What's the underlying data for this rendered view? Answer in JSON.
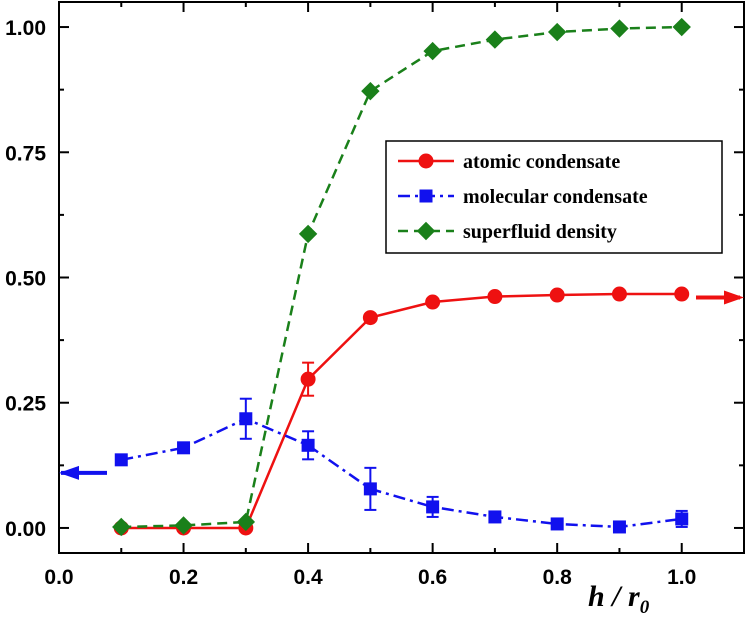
{
  "chart_data": {
    "type": "line",
    "xlabel": "h / r",
    "xlabel_subscript": "0",
    "xlim": [
      0.0,
      1.1
    ],
    "ylim": [
      -0.05,
      1.05
    ],
    "x_ticks": [
      "0.0",
      "0.2",
      "0.4",
      "0.6",
      "0.8",
      "1.0"
    ],
    "y_ticks": [
      "0.00",
      "0.25",
      "0.50",
      "0.75",
      "1.00"
    ],
    "legend_position": "upper-right",
    "series": [
      {
        "name": "atomic condensate",
        "color": "#ee1111",
        "marker": "circle",
        "line_style": "solid",
        "x": [
          0.1,
          0.2,
          0.3,
          0.4,
          0.5,
          0.6,
          0.7,
          0.8,
          0.9,
          1.0
        ],
        "y": [
          0.0,
          0.0,
          0.0,
          0.297,
          0.42,
          0.451,
          0.462,
          0.465,
          0.467,
          0.467
        ],
        "err": [
          0,
          0,
          0,
          0.033,
          0,
          0,
          0,
          0,
          0,
          0
        ]
      },
      {
        "name": "molecular condensate",
        "color": "#1111ee",
        "marker": "square",
        "line_style": "dash-dot",
        "x": [
          0.1,
          0.2,
          0.3,
          0.4,
          0.5,
          0.6,
          0.7,
          0.8,
          0.9,
          1.0
        ],
        "y": [
          0.136,
          0.16,
          0.218,
          0.165,
          0.078,
          0.042,
          0.022,
          0.008,
          0.002,
          0.018
        ],
        "err": [
          0,
          0,
          0.04,
          0.028,
          0.042,
          0.02,
          0,
          0,
          0,
          0.016
        ]
      },
      {
        "name": "superfluid density",
        "color": "#1a801a",
        "marker": "diamond",
        "line_style": "dashed",
        "x": [
          0.1,
          0.2,
          0.3,
          0.4,
          0.5,
          0.6,
          0.7,
          0.8,
          0.9,
          1.0
        ],
        "y": [
          0.002,
          0.005,
          0.012,
          0.587,
          0.872,
          0.952,
          0.975,
          0.99,
          0.997,
          1.0
        ],
        "err": [
          0,
          0,
          0,
          0,
          0,
          0,
          0,
          0,
          0,
          0
        ]
      }
    ],
    "axis_arrows": [
      {
        "side": "left",
        "y": 0.11,
        "color": "#1111ee"
      },
      {
        "side": "right",
        "y": 0.46,
        "color": "#ee1111"
      }
    ]
  }
}
